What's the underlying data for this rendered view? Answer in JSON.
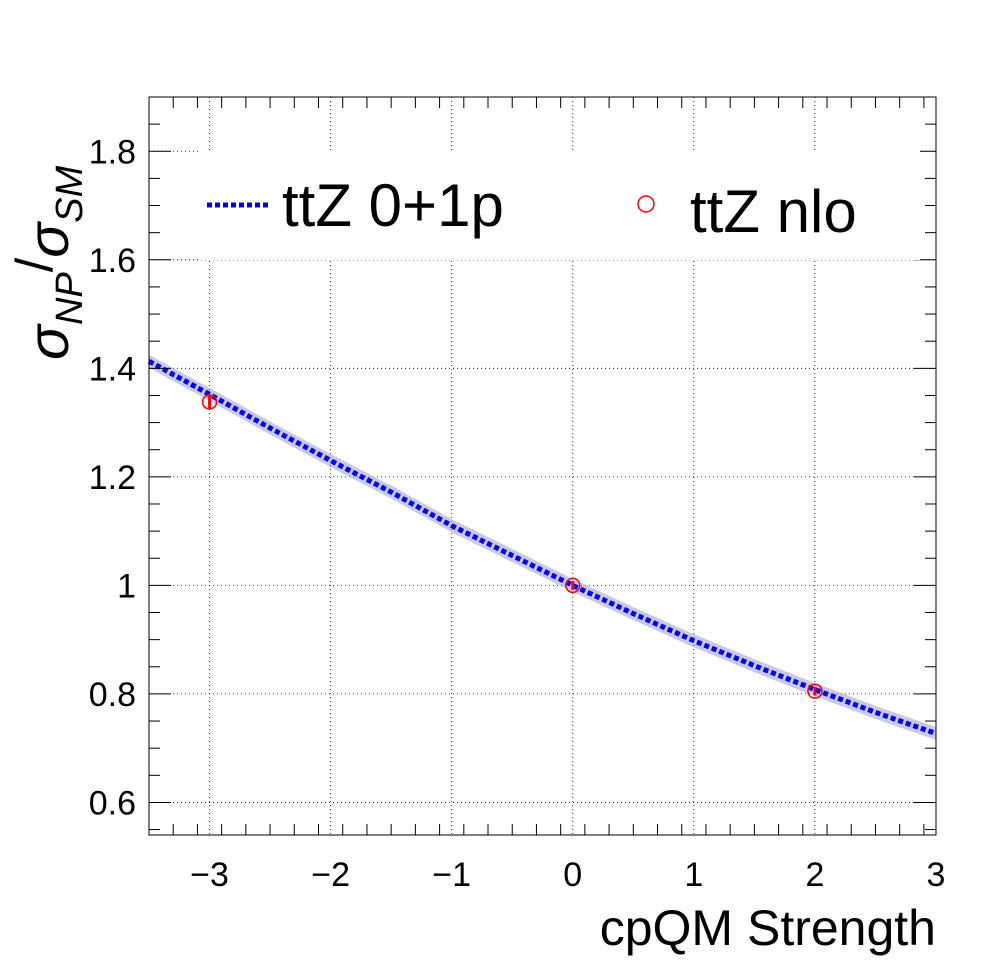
{
  "chart_data": {
    "type": "line",
    "xlabel": "cpQM Strength",
    "ylabel": {
      "sigma": "σ",
      "num_sub": "NP",
      "slash": "/",
      "den_sub": "SM"
    },
    "xlim": [
      -3.5,
      3.0
    ],
    "ylim": [
      0.54,
      1.9
    ],
    "x_ticks": [
      -3,
      -2,
      -1,
      0,
      1,
      2,
      3
    ],
    "x_tick_labels": [
      "−3",
      "−2",
      "−1",
      "0",
      "1",
      "2",
      "3"
    ],
    "y_ticks": [
      0.6,
      0.8,
      1.0,
      1.2,
      1.4,
      1.6,
      1.8
    ],
    "y_tick_labels": [
      "0.6",
      "0.8",
      "1",
      "1.2",
      "1.4",
      "1.6",
      "1.8"
    ],
    "grid": true,
    "legend_placement": "top",
    "series": [
      {
        "name": "ttZ 0+1p",
        "style": "dotted-line-with-band",
        "color": "#0000ee",
        "band_color": "#9a9ad8",
        "x": [
          -3.5,
          -3.0,
          -2.5,
          -2.0,
          -1.5,
          -1.0,
          -0.5,
          0.0,
          0.5,
          1.0,
          1.5,
          2.0,
          2.5,
          3.0
        ],
        "y": [
          1.413,
          1.352,
          1.29,
          1.23,
          1.172,
          1.11,
          1.055,
          1.0,
          0.948,
          0.898,
          0.852,
          0.808,
          0.766,
          0.727
        ],
        "band_halfwidth": 0.012
      },
      {
        "name": "ttZ nlo",
        "style": "open-circle-markers",
        "color": "#ff0000",
        "x": [
          -3,
          0,
          2
        ],
        "y": [
          1.338,
          1.0,
          0.805
        ],
        "yerr": [
          0.012,
          0.008,
          0.008
        ]
      }
    ]
  }
}
